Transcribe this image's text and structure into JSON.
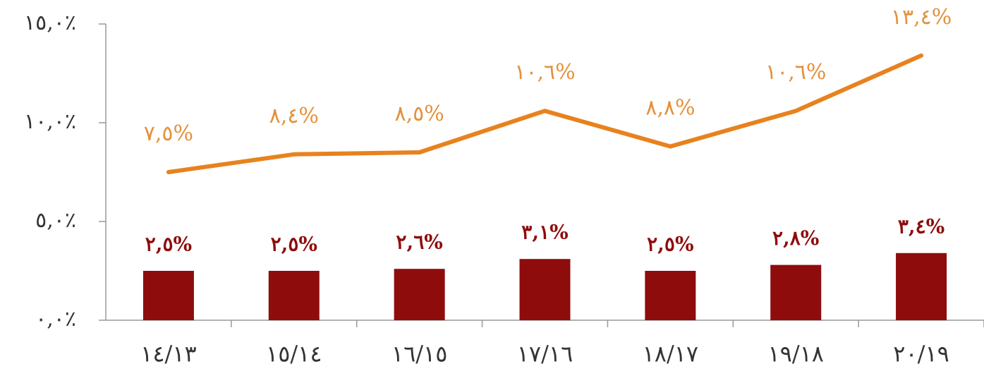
{
  "chart_data": {
    "type": "bar_line",
    "categories": [
      "١٤/١٣",
      "١٥/١٤",
      "١٦/١٥",
      "١٧/١٦",
      "١٨/١٧",
      "١٩/١٨",
      "٢٠/١٩"
    ],
    "series": [
      {
        "type": "bar",
        "color": "#8e0c0c",
        "label_color": "#8e0c0c",
        "values": [
          2.5,
          2.5,
          2.6,
          3.1,
          2.5,
          2.8,
          3.4
        ],
        "value_labels": [
          "٢,٥%",
          "٢,٥%",
          "٢,٦%",
          "٣,١%",
          "٢,٥%",
          "٢,٨%",
          "٣,٤%"
        ]
      },
      {
        "type": "line",
        "color": "#e8821e",
        "label_color": "#e3913a",
        "values": [
          7.5,
          8.4,
          8.5,
          10.6,
          8.8,
          10.6,
          13.4
        ],
        "value_labels": [
          "٧,٥%",
          "٨,٤%",
          "٨,٥%",
          "١٠,٦%",
          "٨,٨%",
          "١٠,٦%",
          "١٣,٤%"
        ]
      }
    ],
    "ylim": [
      0,
      15
    ],
    "yticks": [
      {
        "value": 0,
        "label": "٠,٠٪"
      },
      {
        "value": 5,
        "label": "٥,٠٪"
      },
      {
        "value": 10,
        "label": "١٠,٠٪"
      },
      {
        "value": 15,
        "label": "١٥,٠٪"
      }
    ]
  }
}
